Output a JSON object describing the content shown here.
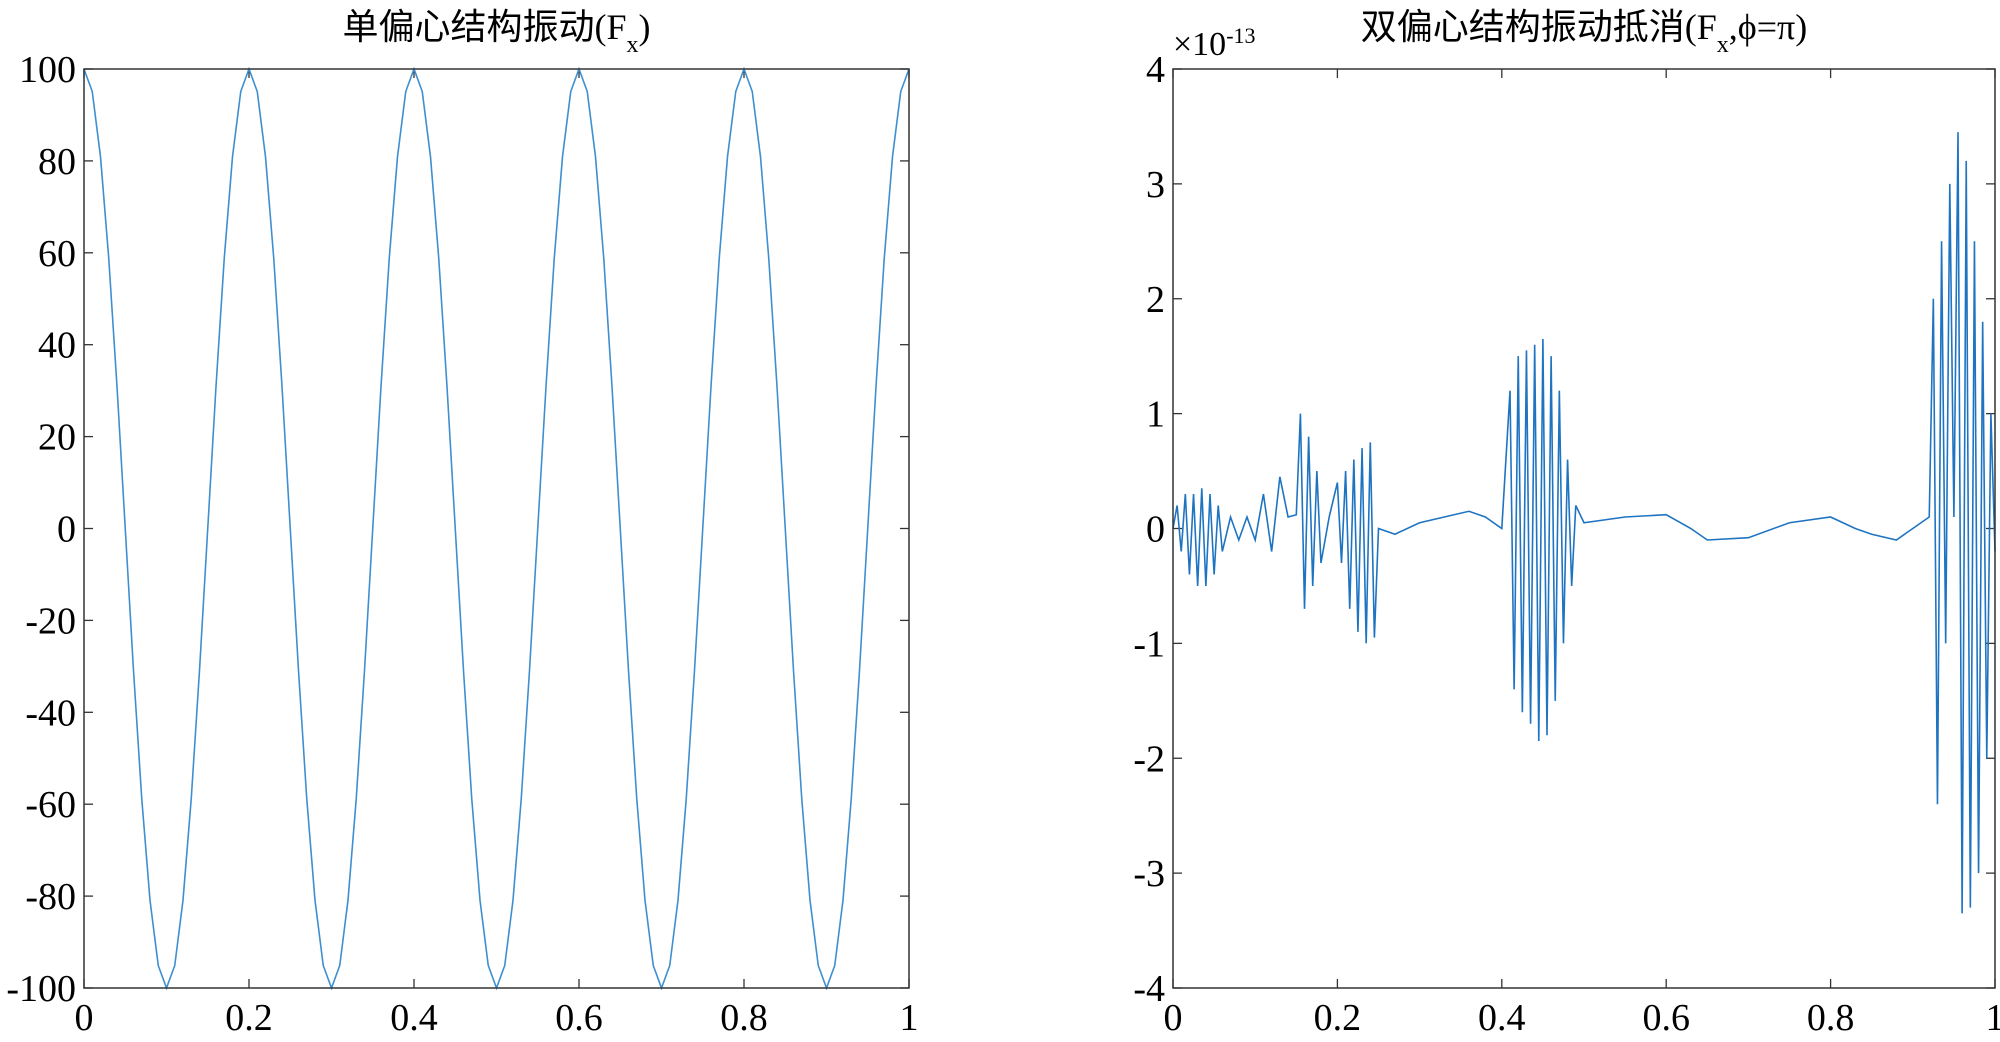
{
  "chart_data": [
    {
      "type": "line",
      "title_parts": [
        "单偏心结构振动(F",
        "x",
        ")"
      ],
      "x": [
        0,
        0.01,
        0.02,
        0.03,
        0.04,
        0.05,
        0.06,
        0.07,
        0.08,
        0.09,
        0.1,
        0.11,
        0.12,
        0.13,
        0.14,
        0.15,
        0.16,
        0.17,
        0.18,
        0.19,
        0.2,
        0.21,
        0.22,
        0.23,
        0.24,
        0.25,
        0.26,
        0.27,
        0.28,
        0.29,
        0.3,
        0.31,
        0.32,
        0.33,
        0.34,
        0.35,
        0.36,
        0.37,
        0.38,
        0.39,
        0.4,
        0.41,
        0.42,
        0.43,
        0.44,
        0.45,
        0.46,
        0.47,
        0.48,
        0.49,
        0.5,
        0.51,
        0.52,
        0.53,
        0.54,
        0.55,
        0.56,
        0.57,
        0.58,
        0.59,
        0.6,
        0.61,
        0.62,
        0.63,
        0.64,
        0.65,
        0.66,
        0.67,
        0.68,
        0.69,
        0.7,
        0.71,
        0.72,
        0.73,
        0.74,
        0.75,
        0.76,
        0.77,
        0.78,
        0.79,
        0.8,
        0.81,
        0.82,
        0.83,
        0.84,
        0.85,
        0.86,
        0.87,
        0.88,
        0.89,
        0.9,
        0.91,
        0.92,
        0.93,
        0.94,
        0.95,
        0.96,
        0.97,
        0.98,
        0.99,
        1
      ],
      "values": [
        100,
        95.1,
        80.9,
        58.8,
        30.9,
        0,
        -30.9,
        -58.8,
        -80.9,
        -95.1,
        -100,
        -95.1,
        -80.9,
        -58.8,
        -30.9,
        0,
        30.9,
        58.8,
        80.9,
        95.1,
        100,
        95.1,
        80.9,
        58.8,
        30.9,
        0,
        -30.9,
        -58.8,
        -80.9,
        -95.1,
        -100,
        -95.1,
        -80.9,
        -58.8,
        -30.9,
        0,
        30.9,
        58.8,
        80.9,
        95.1,
        100,
        95.1,
        80.9,
        58.8,
        30.9,
        0,
        -30.9,
        -58.8,
        -80.9,
        -95.1,
        -100,
        -95.1,
        -80.9,
        -58.8,
        -30.9,
        0,
        30.9,
        58.8,
        80.9,
        95.1,
        100,
        95.1,
        80.9,
        58.8,
        30.9,
        0,
        -30.9,
        -58.8,
        -80.9,
        -95.1,
        -100,
        -95.1,
        -80.9,
        -58.8,
        -30.9,
        0,
        30.9,
        58.8,
        80.9,
        95.1,
        100,
        95.1,
        80.9,
        58.8,
        30.9,
        0,
        -30.9,
        -58.8,
        -80.9,
        -95.1,
        -100,
        -95.1,
        -80.9,
        -58.8,
        -30.9,
        0,
        30.9,
        58.8,
        80.9,
        95.1,
        100
      ],
      "color": "#3d8fd1",
      "xlim": [
        0,
        1
      ],
      "ylim": [
        -100,
        100
      ],
      "xticks": [
        0,
        0.2,
        0.4,
        0.6,
        0.8,
        1
      ],
      "yticks": [
        -100,
        -80,
        -60,
        -40,
        -20,
        0,
        20,
        40,
        60,
        80,
        100
      ]
    },
    {
      "type": "line",
      "title_parts": [
        "双偏心结构振动抵消(F",
        "x",
        ",ϕ=π)"
      ],
      "y_multiplier": "×10",
      "y_exponent": "-13",
      "x": [
        0,
        0.005,
        0.01,
        0.015,
        0.02,
        0.025,
        0.03,
        0.035,
        0.04,
        0.045,
        0.05,
        0.055,
        0.06,
        0.07,
        0.08,
        0.09,
        0.1,
        0.11,
        0.12,
        0.13,
        0.14,
        0.15,
        0.155,
        0.16,
        0.165,
        0.17,
        0.175,
        0.18,
        0.19,
        0.2,
        0.205,
        0.21,
        0.215,
        0.22,
        0.225,
        0.23,
        0.235,
        0.24,
        0.245,
        0.25,
        0.27,
        0.3,
        0.33,
        0.36,
        0.38,
        0.4,
        0.41,
        0.415,
        0.42,
        0.425,
        0.43,
        0.435,
        0.44,
        0.445,
        0.45,
        0.455,
        0.46,
        0.465,
        0.47,
        0.475,
        0.48,
        0.485,
        0.49,
        0.5,
        0.55,
        0.6,
        0.63,
        0.65,
        0.7,
        0.75,
        0.8,
        0.83,
        0.85,
        0.88,
        0.9,
        0.92,
        0.925,
        0.93,
        0.935,
        0.94,
        0.945,
        0.95,
        0.955,
        0.96,
        0.965,
        0.97,
        0.975,
        0.98,
        0.985,
        0.99,
        0.995,
        1
      ],
      "values": [
        0,
        0.2,
        -0.2,
        0.3,
        -0.4,
        0.3,
        -0.5,
        0.35,
        -0.5,
        0.3,
        -0.4,
        0.2,
        -0.2,
        0.1,
        -0.1,
        0.1,
        -0.1,
        0.3,
        -0.2,
        0.45,
        0.1,
        0.12,
        1.0,
        -0.7,
        0.8,
        -0.5,
        0.5,
        -0.3,
        0.1,
        0.4,
        -0.3,
        0.5,
        -0.7,
        0.6,
        -0.9,
        0.7,
        -1.0,
        0.75,
        -0.95,
        0.0,
        -0.05,
        0.05,
        0.1,
        0.15,
        0.1,
        0.0,
        1.2,
        -1.4,
        1.5,
        -1.6,
        1.55,
        -1.7,
        1.6,
        -1.85,
        1.65,
        -1.8,
        1.5,
        -1.5,
        1.2,
        -1.0,
        0.6,
        -0.5,
        0.2,
        0.05,
        0.1,
        0.12,
        0.0,
        -0.1,
        -0.08,
        0.05,
        0.1,
        0.0,
        -0.05,
        -0.1,
        0.0,
        0.1,
        2.0,
        -2.4,
        2.5,
        -1.0,
        3.0,
        0.1,
        3.45,
        -3.35,
        3.2,
        -3.3,
        2.5,
        -3.0,
        1.8,
        -2.0,
        1.0,
        -0.2
      ],
      "color": "#1f74c2",
      "xlim": [
        0,
        1
      ],
      "ylim": [
        -4,
        4
      ],
      "xticks": [
        0,
        0.2,
        0.4,
        0.6,
        0.8,
        1
      ],
      "yticks": [
        -4,
        -3,
        -2,
        -1,
        0,
        1,
        2,
        3,
        4
      ]
    }
  ]
}
